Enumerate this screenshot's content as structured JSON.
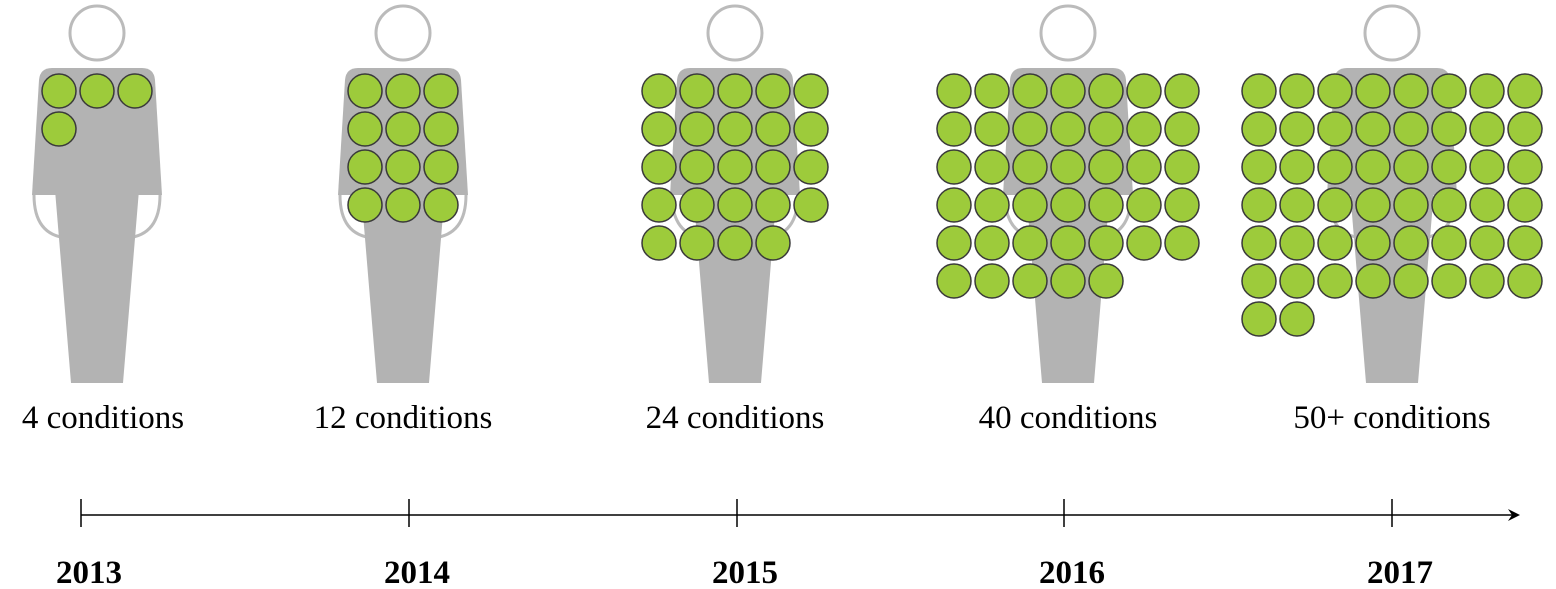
{
  "figures": [
    {
      "label": "4 conditions",
      "circles": 4
    },
    {
      "label": "12 conditions",
      "circles": 12
    },
    {
      "label": "24 conditions",
      "circles": 24
    },
    {
      "label": "40 conditions",
      "circles": 40
    },
    {
      "label": "50+ conditions",
      "circles": 50
    }
  ],
  "timeline": {
    "years": [
      "2013",
      "2014",
      "2015",
      "2016",
      "2017"
    ]
  }
}
